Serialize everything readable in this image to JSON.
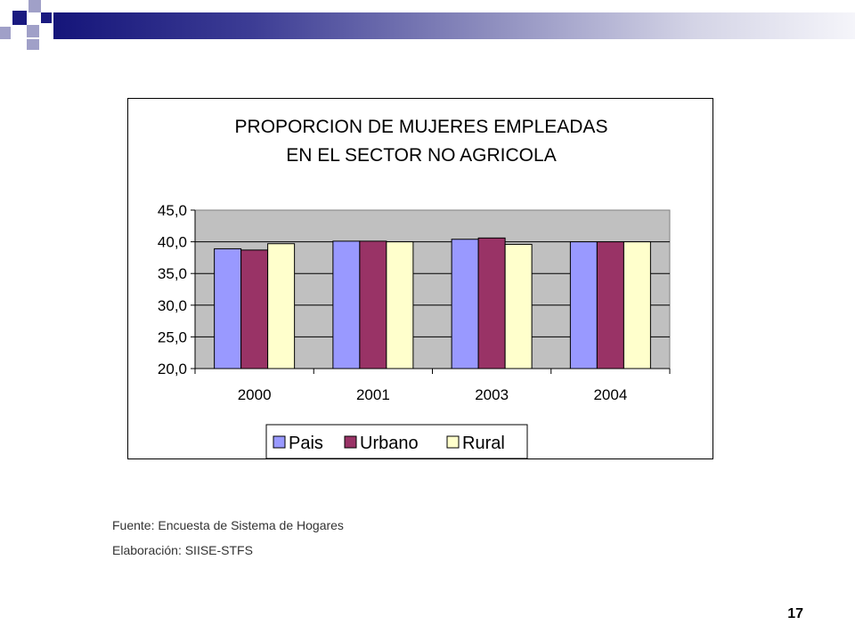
{
  "slide": {
    "source_note": "Fuente: Encuesta de Sistema de Hogares",
    "author_note": "Elaboración: SIISE-STFS",
    "page_number": "17"
  },
  "colors": {
    "bar_gradient_dark": "#15157a",
    "square_dark": "#1a1a80",
    "square_light": "#a0a0c8",
    "plot_background": "#c0c0c0"
  },
  "chart_data": {
    "type": "bar",
    "title_lines": [
      "PROPORCION DE MUJERES EMPLEADAS",
      "EN EL SECTOR NO AGRICOLA"
    ],
    "categories": [
      "2000",
      "2001",
      "2003",
      "2004"
    ],
    "series": [
      {
        "name": "Pais",
        "values": [
          38.9,
          40.1,
          40.4,
          40.0
        ],
        "color": "#9999ff"
      },
      {
        "name": "Urbano",
        "values": [
          38.7,
          40.1,
          40.6,
          40.0
        ],
        "color": "#993366"
      },
      {
        "name": "Rural",
        "values": [
          39.7,
          40.0,
          39.6,
          40.0
        ],
        "color": "#ffffcc"
      }
    ],
    "yticks": [
      "20,0",
      "25,0",
      "30,0",
      "35,0",
      "40,0",
      "45,0"
    ],
    "ylim": [
      20,
      45
    ],
    "grid": true,
    "legend_position": "bottom"
  }
}
